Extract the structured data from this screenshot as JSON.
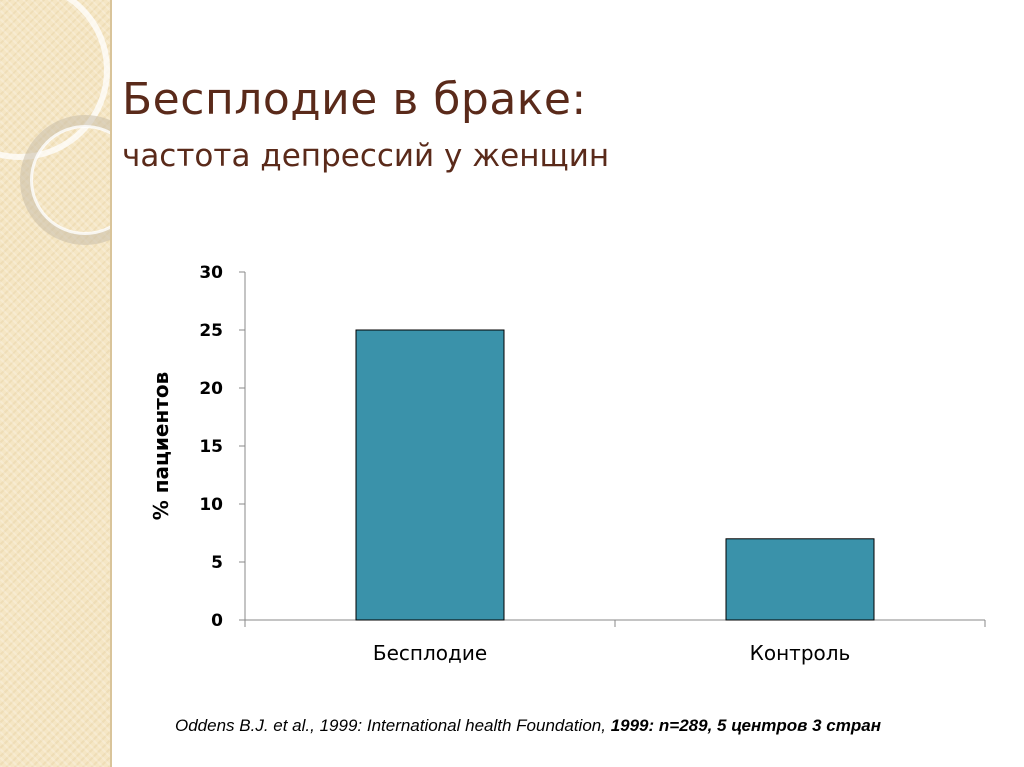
{
  "slide": {
    "title": "Бесплодие в браке:",
    "subtitle": "частота депрессий у женщин"
  },
  "colors": {
    "title": "#5a2a1a",
    "bar": "#3a92aa",
    "sidebar": "#f5e6c4"
  },
  "chart_data": {
    "type": "bar",
    "categories": [
      "Бесплодие",
      "Контроль"
    ],
    "values": [
      25,
      7
    ],
    "ylabel": "% пациентов",
    "xlabel": "",
    "ylim": [
      0,
      30
    ],
    "yticks": [
      "0",
      "5",
      "10",
      "15",
      "20",
      "25",
      "30"
    ],
    "grid": false,
    "legend": "none"
  },
  "source": {
    "part1": "Oddens B.J. et al., 1999: International health Foundation, ",
    "part2": "1999: n=289, 5 центров 3 стран"
  }
}
